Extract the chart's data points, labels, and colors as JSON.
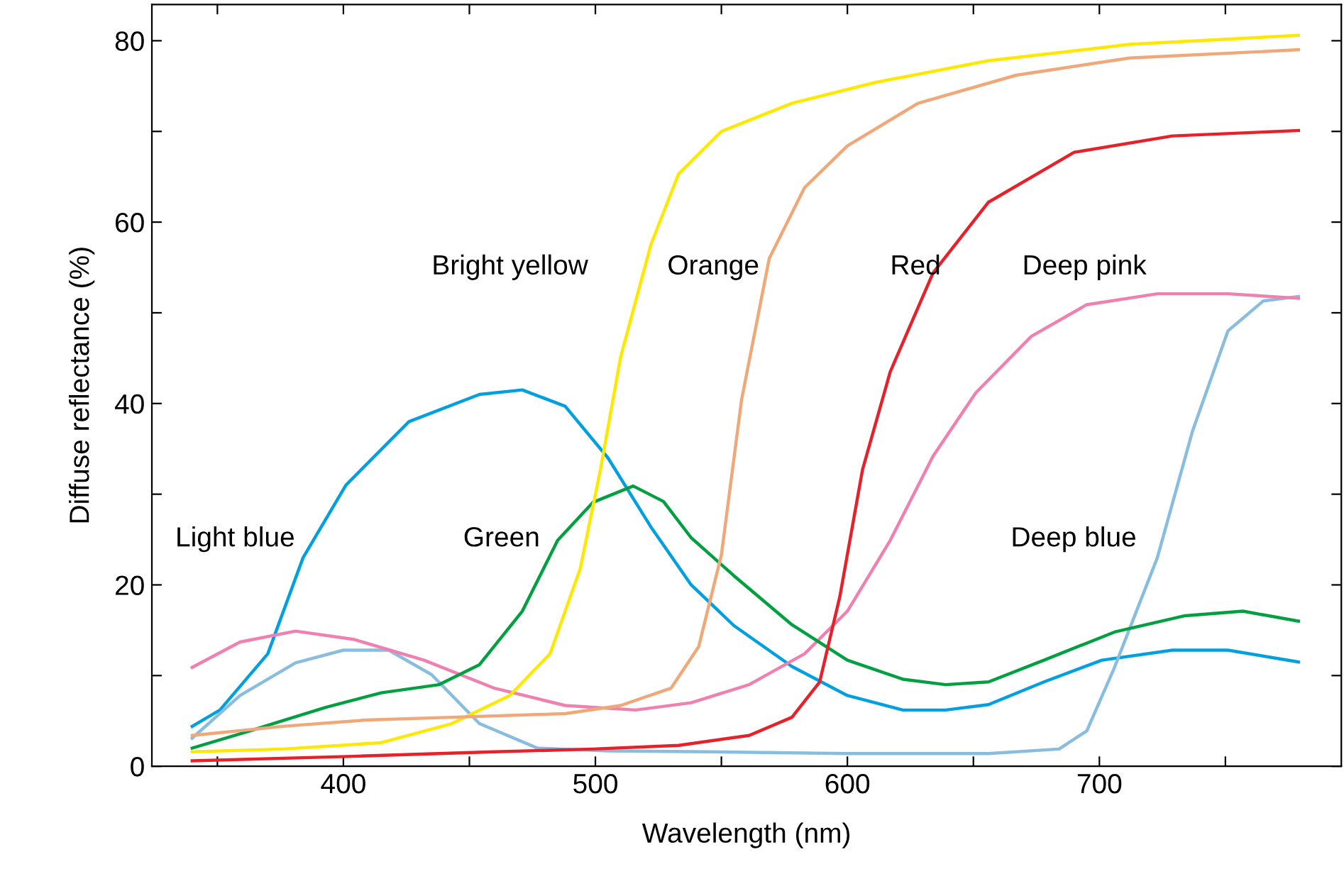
{
  "chart_data": {
    "type": "line",
    "xlabel": "Wavelength (nm)",
    "ylabel": "Diffuse reflectance (%)",
    "xlim": [
      324,
      796
    ],
    "ylim": [
      0,
      84
    ],
    "xticks": [
      {
        "value": 350,
        "label": null
      },
      400,
      {
        "value": 450,
        "label": null
      },
      500,
      {
        "value": 550,
        "label": null
      },
      600,
      {
        "value": 650,
        "label": null
      },
      700,
      {
        "value": 750,
        "label": null
      }
    ],
    "yticks": [
      0,
      {
        "value": 10,
        "label": null
      },
      20,
      {
        "value": 30,
        "label": null
      },
      40,
      {
        "value": 50,
        "label": null
      },
      60,
      {
        "value": 70,
        "label": null
      },
      80
    ],
    "grid": false,
    "legend": false,
    "marker": "none",
    "line_style": "solid",
    "series": [
      {
        "color": "#00a0e0",
        "x": [
          340,
          351,
          370,
          384,
          401,
          426,
          454,
          471,
          488,
          505,
          522,
          538,
          555,
          578,
          600,
          622,
          639,
          656,
          678,
          701,
          729,
          751,
          779
        ],
        "values": [
          4.4,
          6.2,
          12.4,
          23,
          31,
          38,
          41,
          41.5,
          39.7,
          34,
          26.4,
          20,
          15.5,
          11,
          7.8,
          6.2,
          6.2,
          6.8,
          9.3,
          11.7,
          12.8,
          12.8,
          11.5
        ]
      },
      {
        "color": "#88bde0",
        "x": [
          340,
          359,
          381,
          400,
          418,
          435,
          454,
          477,
          505,
          544,
          600,
          656,
          684,
          695,
          706,
          723,
          737,
          751,
          765,
          779
        ],
        "values": [
          3.1,
          7.8,
          11.4,
          12.8,
          12.8,
          10.1,
          4.7,
          2,
          1.7,
          1.6,
          1.4,
          1.4,
          1.9,
          3.9,
          10.9,
          23,
          37,
          48,
          51.3,
          51.8
        ]
      },
      {
        "color": "#f080b0",
        "x": [
          340,
          359,
          381,
          404,
          432,
          460,
          488,
          516,
          538,
          561,
          583,
          600,
          617,
          634,
          651,
          673,
          695,
          723,
          751,
          779
        ],
        "values": [
          10.9,
          13.7,
          14.9,
          14,
          11.7,
          8.6,
          6.7,
          6.2,
          7,
          9,
          12.4,
          17.1,
          24.9,
          34.2,
          41.2,
          47.4,
          50.9,
          52.1,
          52.1,
          51.6
        ]
      },
      {
        "color": "#00a040",
        "x": [
          340,
          364,
          393,
          415,
          438,
          454,
          471,
          485,
          499,
          515,
          527,
          538,
          555,
          578,
          600,
          622,
          639,
          656,
          678,
          706,
          734,
          757,
          779
        ],
        "values": [
          2,
          4,
          6.5,
          8.1,
          9,
          11.2,
          17.1,
          24.9,
          29.1,
          30.9,
          29.2,
          25.2,
          21,
          15.6,
          11.7,
          9.6,
          9,
          9.3,
          11.7,
          14.8,
          16.6,
          17.1,
          16
        ]
      },
      {
        "color": "#ffe800",
        "x": [
          340,
          376,
          415,
          443,
          466,
          482,
          494,
          502,
          510,
          522,
          533,
          550,
          578,
          611,
          656,
          712,
          779
        ],
        "values": [
          1.6,
          1.9,
          2.6,
          4.7,
          7.8,
          12.4,
          21.8,
          32.7,
          45.1,
          57.5,
          65.3,
          70,
          73.1,
          75.4,
          77.8,
          79.6,
          80.6
        ]
      },
      {
        "color": "#f0a878",
        "x": [
          340,
          376,
          409,
          443,
          488,
          510,
          530,
          541,
          550,
          558,
          569,
          583,
          600,
          628,
          667,
          712,
          779
        ],
        "values": [
          3.4,
          4.4,
          5.1,
          5.4,
          5.8,
          6.7,
          8.6,
          13.2,
          23.3,
          40.4,
          56,
          63.8,
          68.4,
          73.1,
          76.2,
          78.1,
          79
        ]
      },
      {
        "color": "#e8202a",
        "x": [
          340,
          404,
          460,
          499,
          533,
          561,
          578,
          589,
          597,
          606,
          617,
          634,
          656,
          690,
          729,
          779
        ],
        "values": [
          0.6,
          1.1,
          1.6,
          1.9,
          2.3,
          3.4,
          5.4,
          9.3,
          18.7,
          32.7,
          43.5,
          54.4,
          62.2,
          67.7,
          69.5,
          70.1
        ]
      }
    ],
    "annotations": [
      "Bright yellow",
      "Orange",
      "Red",
      "Deep pink",
      "Light blue",
      "Green",
      "Deep blue"
    ]
  }
}
